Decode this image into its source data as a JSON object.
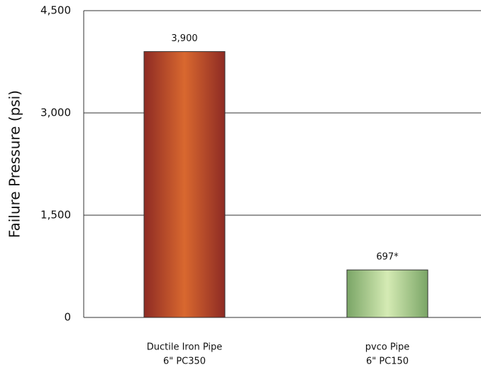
{
  "chart_data": {
    "type": "bar",
    "ylabel": "Failure Pressure (psi)",
    "categories": [
      [
        "Ductile Iron Pipe",
        "6\" PC350"
      ],
      [
        "pvco Pipe",
        "6\" PC150"
      ]
    ],
    "values": [
      3900,
      697
    ],
    "value_labels": [
      "3,900",
      "697*"
    ],
    "colors": [
      [
        "#8e2b24",
        "#d9682f"
      ],
      [
        "#7aa566",
        "#d5ebb4"
      ]
    ],
    "ylim": [
      0,
      4500
    ],
    "yticks": [
      0,
      {
        "value": 1500,
        "label": "1,500"
      },
      {
        "value": 3000,
        "label": "3,000"
      },
      {
        "value": 4500,
        "label": "4,500"
      }
    ],
    "grid": true
  }
}
